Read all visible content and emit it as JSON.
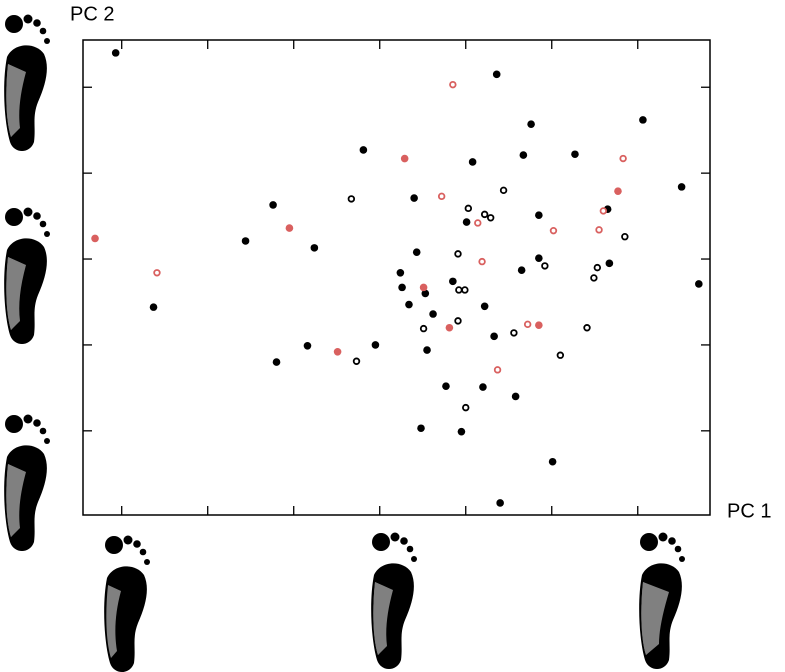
{
  "chart_data": {
    "type": "scatter",
    "x_label": "PC 1",
    "y_label": "PC 2",
    "xlim": [
      -3.45,
      3.84
    ],
    "ylim": [
      -2.98,
      2.55
    ],
    "xticks": [
      -3,
      -2,
      -1,
      0,
      1,
      2,
      3
    ],
    "yticks": [
      -2,
      -1,
      0,
      1,
      2
    ],
    "series": [
      {
        "color": "#000000",
        "filled": true,
        "x": [
          -3.07,
          1.36,
          1.76,
          3.06,
          -0.19,
          1.67,
          2.27,
          1.08,
          3.51,
          0.4,
          -1.24,
          2.65,
          1.85,
          1.01,
          -1.56,
          -0.76,
          0.43,
          1.85,
          2.67,
          1.65,
          0.24,
          0.85,
          0.26,
          3.71,
          0.53,
          -2.63,
          0.34,
          0.62,
          1.22,
          1.33,
          -0.84,
          -0.05,
          0.55,
          -1.2,
          0.77,
          1.2,
          1.58,
          0.48,
          0.95,
          2.01,
          1.4
        ],
        "y": [
          2.4,
          2.15,
          1.57,
          1.62,
          1.27,
          1.21,
          1.22,
          1.13,
          0.84,
          0.71,
          0.63,
          0.58,
          0.51,
          0.43,
          0.21,
          0.13,
          0.08,
          0.01,
          -0.05,
          -0.13,
          -0.16,
          -0.26,
          -0.33,
          -0.29,
          -0.4,
          -0.56,
          -0.53,
          -0.64,
          -0.55,
          -0.9,
          -1.01,
          -1.0,
          -1.06,
          -1.2,
          -1.48,
          -1.49,
          -1.6,
          -1.97,
          -2.01,
          -2.36,
          -2.84
        ]
      },
      {
        "color": "#000000",
        "filled": false,
        "x": [
          -0.33,
          1.44,
          1.03,
          1.22,
          1.29,
          2.85,
          0.91,
          1.92,
          2.53,
          2.49,
          0.92,
          0.99,
          0.91,
          0.51,
          1.56,
          2.41,
          2.1,
          -0.27,
          1.0
        ],
        "y": [
          0.7,
          0.8,
          0.59,
          0.52,
          0.48,
          0.26,
          0.06,
          -0.08,
          -0.1,
          -0.22,
          -0.36,
          -0.36,
          -0.72,
          -0.81,
          -0.86,
          -0.8,
          -1.12,
          -1.19,
          -1.73
        ]
      },
      {
        "color": "#d9605f",
        "filled": true,
        "x": [
          -3.31,
          0.29,
          2.77,
          -1.05,
          0.51,
          0.81,
          1.85,
          -0.49
        ],
        "y": [
          0.24,
          1.17,
          0.79,
          0.36,
          -0.33,
          -0.8,
          -0.77,
          -1.08
        ]
      },
      {
        "color": "#d9605f",
        "filled": false,
        "x": [
          0.85,
          2.83,
          0.72,
          2.6,
          1.14,
          2.02,
          2.55,
          1.19,
          -2.59,
          1.72,
          1.37
        ],
        "y": [
          2.03,
          1.17,
          0.73,
          0.56,
          0.42,
          0.33,
          0.34,
          -0.03,
          -0.16,
          -0.76,
          -1.29
        ]
      }
    ]
  }
}
